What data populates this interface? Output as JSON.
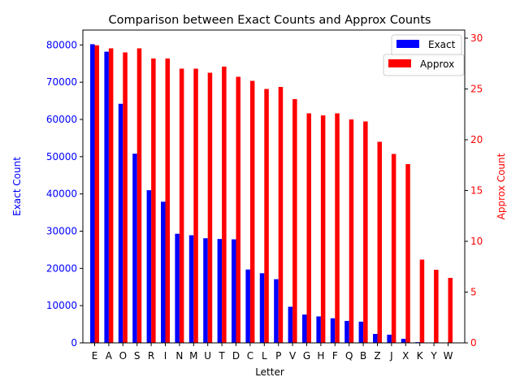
{
  "chart_data": {
    "type": "bar",
    "title": "Comparison between Exact Counts and Approx Counts",
    "xlabel": "Letter",
    "ylabel_left": "Exact Count",
    "ylabel_right": "Approx Count",
    "categories": [
      "E",
      "A",
      "O",
      "S",
      "R",
      "I",
      "N",
      "M",
      "U",
      "T",
      "D",
      "C",
      "L",
      "P",
      "V",
      "G",
      "H",
      "F",
      "Q",
      "B",
      "Z",
      "J",
      "X",
      "K",
      "Y",
      "W"
    ],
    "series": [
      {
        "name": "Exact",
        "axis": "left",
        "color": "#0000ff",
        "values": [
          80200,
          78200,
          64200,
          50800,
          41000,
          37900,
          29300,
          28900,
          28100,
          27900,
          27800,
          19700,
          18700,
          17100,
          9700,
          7600,
          7100,
          6600,
          5900,
          5700,
          2400,
          2200,
          1100,
          200,
          0,
          0
        ]
      },
      {
        "name": "Approx",
        "axis": "right",
        "color": "#ff0000",
        "values": [
          29.3,
          29.0,
          28.6,
          29.0,
          28.0,
          28.0,
          27.0,
          27.0,
          26.6,
          27.2,
          26.2,
          25.8,
          25.0,
          25.2,
          24.0,
          22.6,
          22.4,
          22.6,
          22.0,
          21.8,
          19.8,
          18.6,
          17.6,
          8.2,
          7.2,
          6.4
        ]
      }
    ],
    "ylim_left": [
      0,
      84000
    ],
    "ylim_right": [
      0,
      30.8
    ],
    "yticks_left": [
      0,
      10000,
      20000,
      30000,
      40000,
      50000,
      60000,
      70000,
      80000
    ],
    "yticks_right": [
      0,
      5,
      10,
      15,
      20,
      25,
      30
    ],
    "legend": [
      "Exact",
      "Approx"
    ],
    "legend_position": "top-right",
    "grid": false
  }
}
